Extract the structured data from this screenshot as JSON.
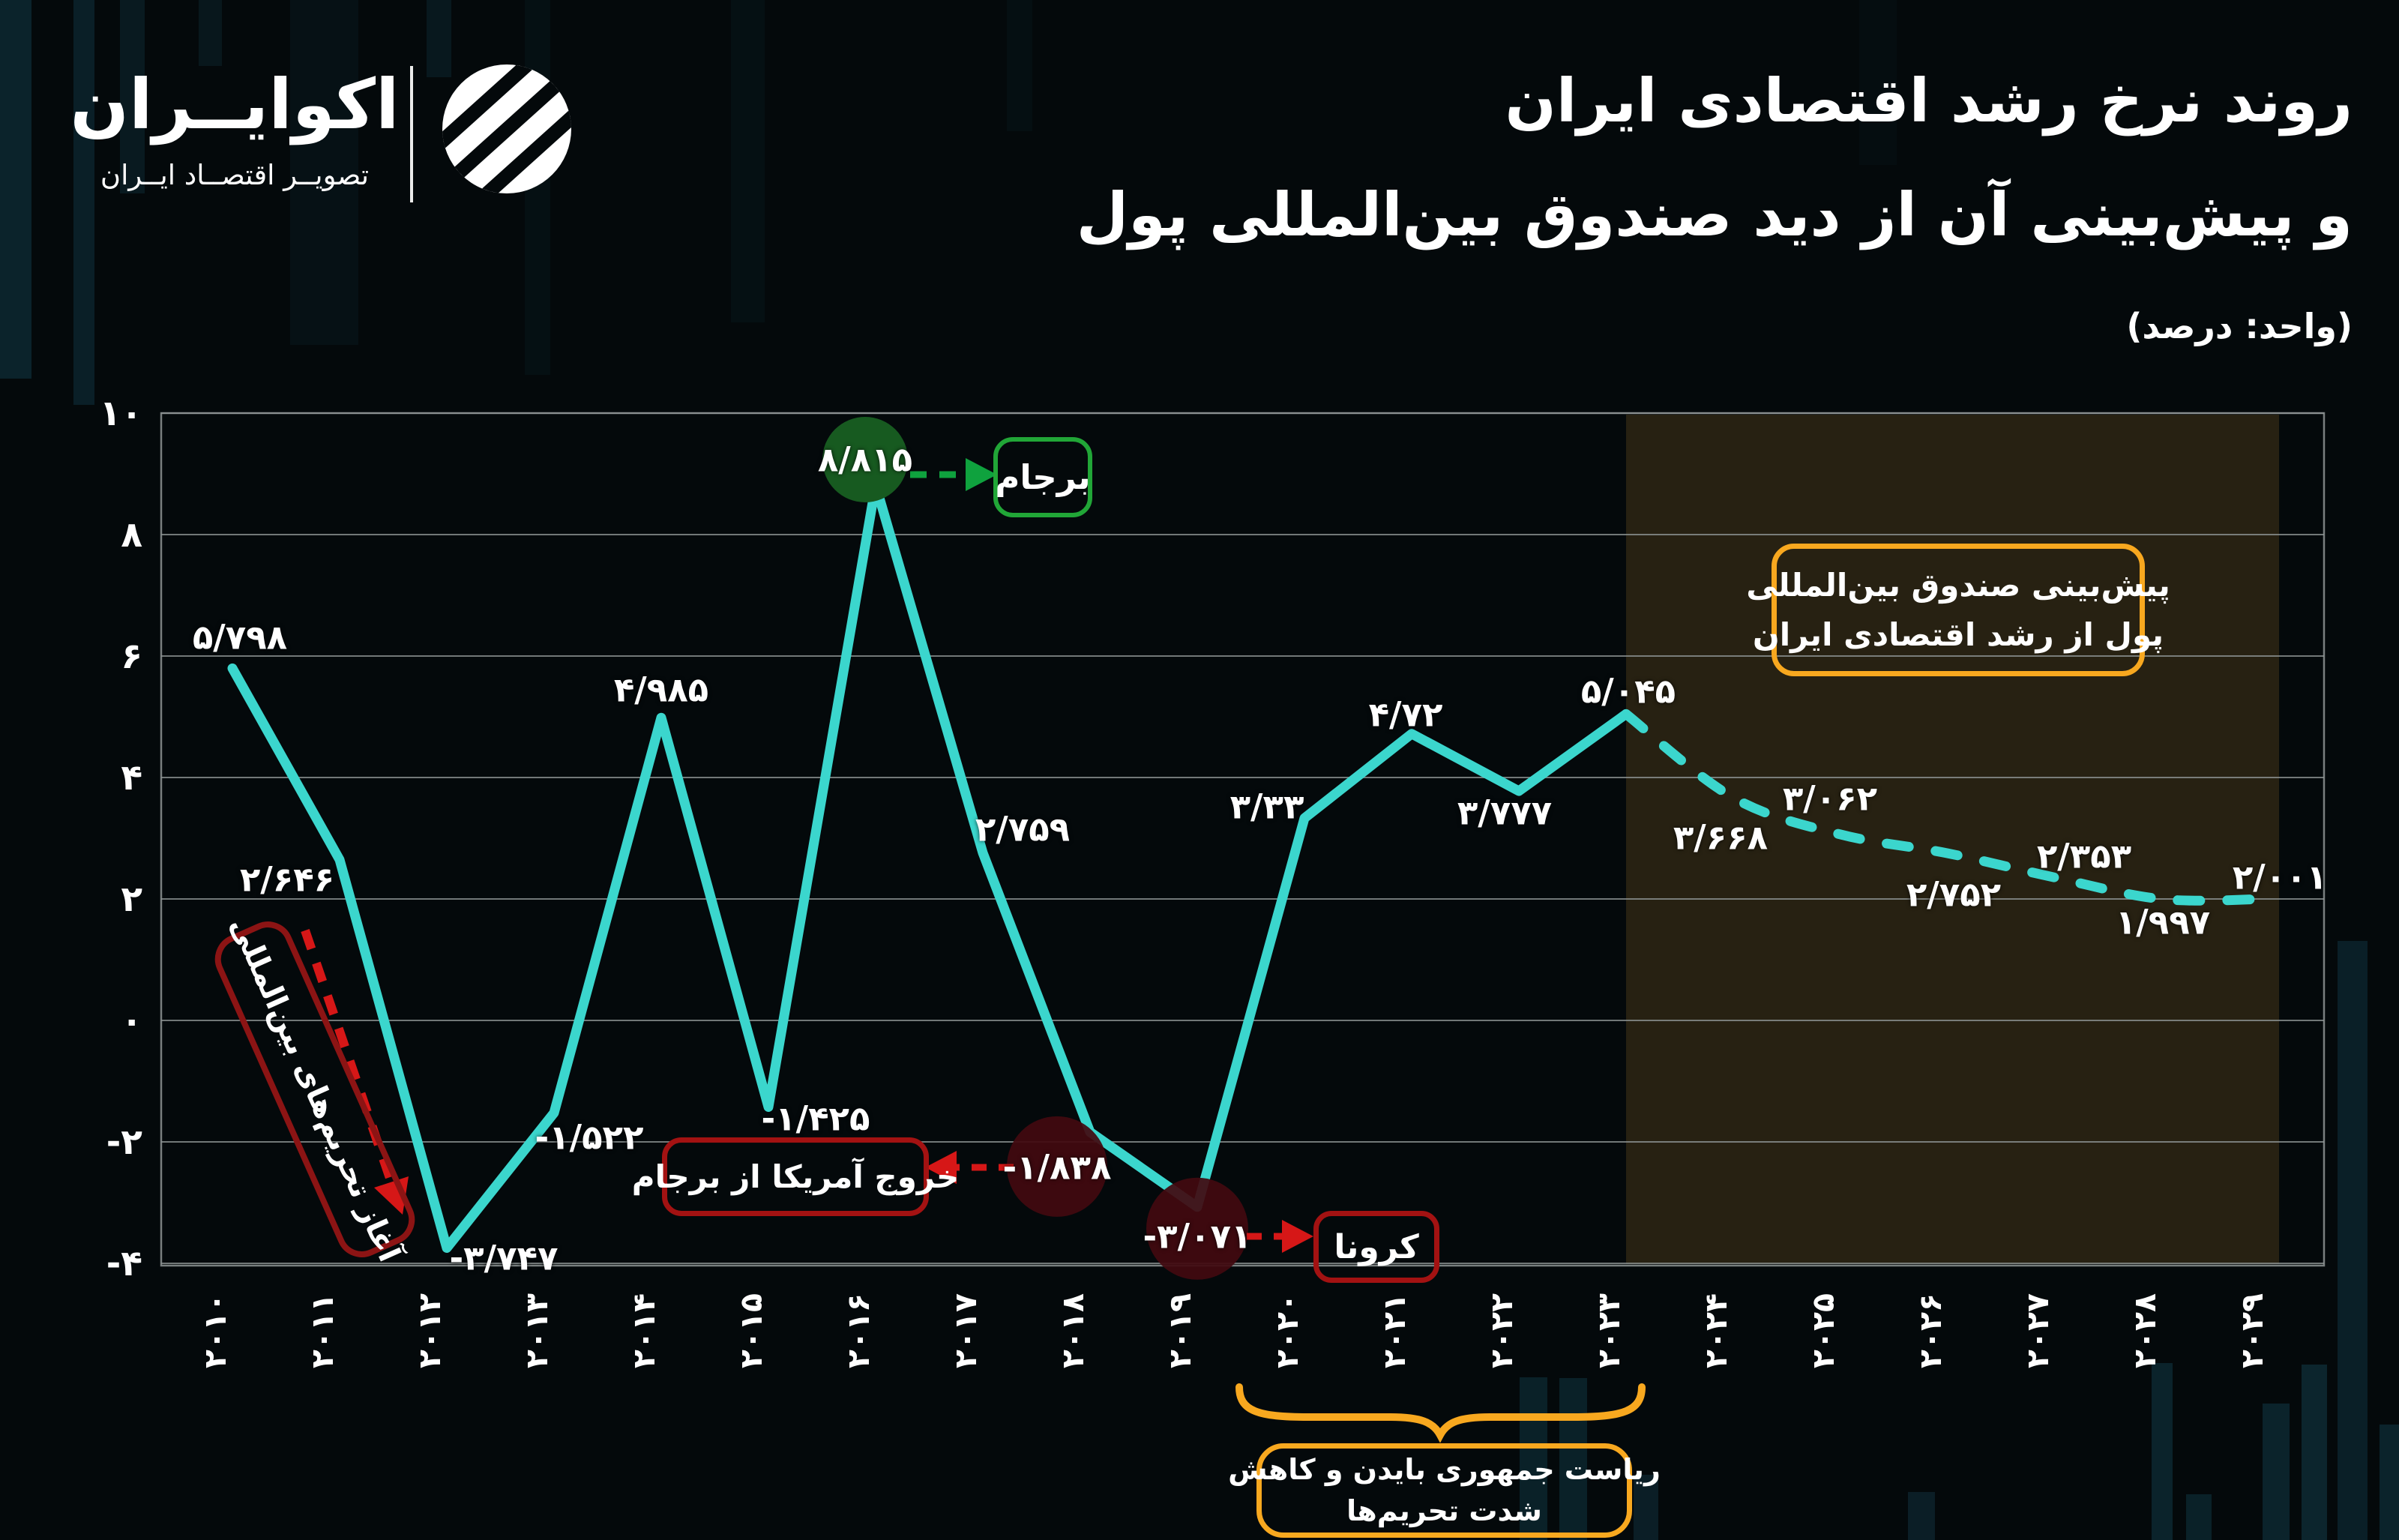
{
  "brand": {
    "name": "اکوایــران",
    "tagline": "تصویــر اقتصــاد ایــران"
  },
  "header": {
    "title_line1": "روند نرخ رشد اقتصادی ایران",
    "title_line2": "و پیش‌بینی آن از دید صندوق بین‌المللی پول",
    "unit_note": "(واحد: درصد)"
  },
  "chart_data": {
    "type": "line",
    "title": "روند نرخ رشد اقتصادی ایران و پیش‌بینی آن از دید صندوق بین‌المللی پول",
    "ylabel": "درصد",
    "ylim": [
      -4,
      10
    ],
    "grid": true,
    "yticks": [
      {
        "value": 10,
        "label": "۱۰"
      },
      {
        "value": 8,
        "label": "۸"
      },
      {
        "value": 6,
        "label": "۶"
      },
      {
        "value": 4,
        "label": "۴"
      },
      {
        "value": 2,
        "label": "۲"
      },
      {
        "value": 0,
        "label": "۰"
      },
      {
        "value": -2,
        "label": "-۲"
      },
      {
        "value": -4,
        "label": "-۴"
      }
    ],
    "line_color": "#3bd6cd",
    "grid_color": "#8e9494",
    "forecast_region": {
      "from_year": 2023,
      "to_year": 2029,
      "color": "#272112"
    },
    "series": [
      {
        "name": "actual",
        "style": "solid",
        "points": [
          {
            "year": 2010,
            "year_label": "۲۰۱۰",
            "value": 5.798,
            "value_label": "۵/۷۹۸"
          },
          {
            "year": 2011,
            "year_label": "۲۰۱۱",
            "value": 2.646,
            "value_label": "۲/۶۴۶"
          },
          {
            "year": 2012,
            "year_label": "۲۰۱۲",
            "value": -3.747,
            "value_label": "-۳/۷۴۷"
          },
          {
            "year": 2013,
            "year_label": "۲۰۱۳",
            "value": -1.522,
            "value_label": "-۱/۵۲۲"
          },
          {
            "year": 2014,
            "year_label": "۲۰۱۴",
            "value": 4.985,
            "value_label": "۴/۹۸۵"
          },
          {
            "year": 2015,
            "year_label": "۲۰۱۵",
            "value": -1.425,
            "value_label": "-۱/۴۲۵"
          },
          {
            "year": 2016,
            "year_label": "۲۰۱۶",
            "value": 8.815,
            "value_label": "۸/۸۱۵"
          },
          {
            "year": 2017,
            "year_label": "۲۰۱۷",
            "value": 2.759,
            "value_label": "۲/۷۵۹"
          },
          {
            "year": 2018,
            "year_label": "۲۰۱۸",
            "value": -1.838,
            "value_label": "-۱/۸۳۸"
          },
          {
            "year": 2019,
            "year_label": "۲۰۱۹",
            "value": -3.071,
            "value_label": "-۳/۰۷۱"
          },
          {
            "year": 2020,
            "year_label": "۲۰۲۰",
            "value": 3.33,
            "value_label": "۳/۳۳"
          },
          {
            "year": 2021,
            "year_label": "۲۰۲۱",
            "value": 4.72,
            "value_label": "۴/۷۲"
          },
          {
            "year": 2022,
            "year_label": "۲۰۲۲",
            "value": 3.777,
            "value_label": "۳/۷۷۷"
          },
          {
            "year": 2023,
            "year_label": "۲۰۲۳",
            "value": 5.045,
            "value_label": "۵/۰۴۵"
          }
        ]
      },
      {
        "name": "forecast",
        "style": "dashed",
        "points": [
          {
            "year": 2024,
            "year_label": "۲۰۲۴",
            "value": 3.668,
            "value_label": "۳/۶۶۸"
          },
          {
            "year": 2025,
            "year_label": "۲۰۲۵",
            "value": 3.062,
            "value_label": "۳/۰۶۲"
          },
          {
            "year": 2026,
            "year_label": "۲۰۲۶",
            "value": 2.752,
            "value_label": "۲/۷۵۲"
          },
          {
            "year": 2027,
            "year_label": "۲۰۲۷",
            "value": 2.353,
            "value_label": "۲/۳۵۳"
          },
          {
            "year": 2028,
            "year_label": "۲۰۲۸",
            "value": 1.997,
            "value_label": "۱/۹۹۷"
          },
          {
            "year": 2029,
            "year_label": "۲۰۲۹",
            "value": 2.001,
            "value_label": "۲/۰۰۱"
          }
        ]
      }
    ],
    "annotations": {
      "jcpoa": {
        "text": "برجام",
        "year": 2016,
        "color": "#21a637"
      },
      "us_exit": {
        "text": "خروج آمریکا از برجام",
        "year": 2018,
        "color": "#a31212"
      },
      "corona": {
        "text": "کرونا",
        "year": 2019,
        "color": "#a31212"
      },
      "sanctions": {
        "text": "آغاز تحریم‌های بین‌المللی",
        "color": "#8c1414"
      },
      "imf": {
        "line1": "پیش‌بینی صندوق بین‌المللی",
        "line2": "پول از رشد اقتصادی ایران",
        "color": "#f8a81f"
      },
      "biden": {
        "line1": "ریاست جمهوری بایدن و کاهش",
        "line2": "شدت تحریم‌ها",
        "color": "#f8a81f"
      }
    }
  }
}
